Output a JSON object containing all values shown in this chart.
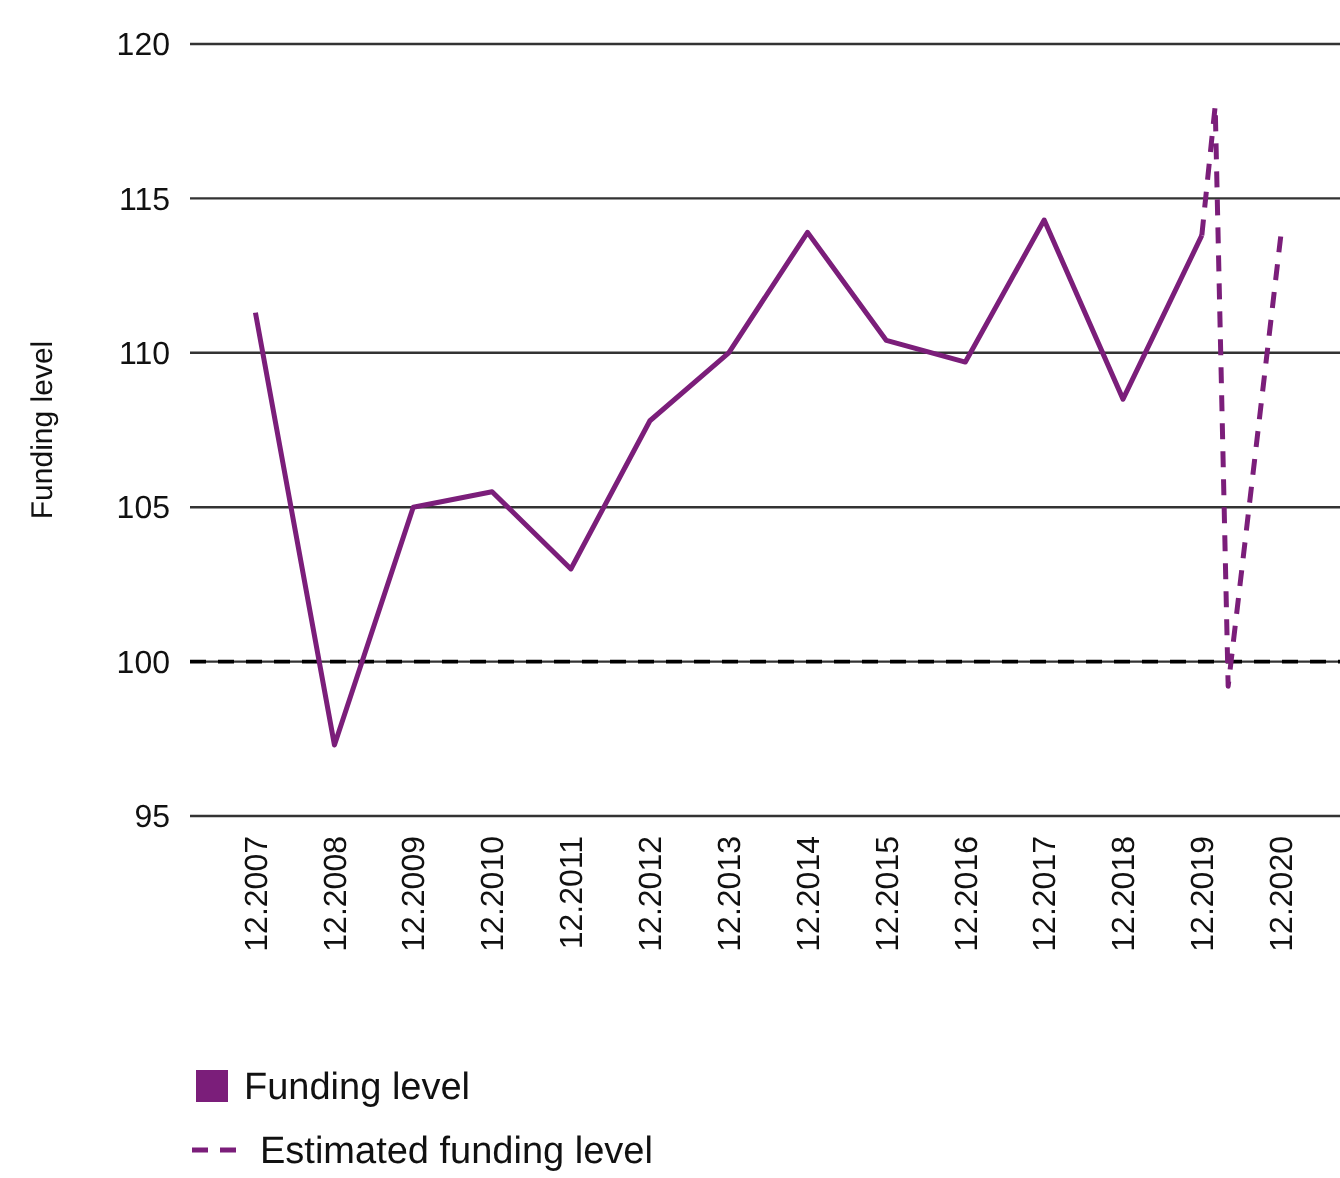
{
  "chart_data": {
    "type": "line",
    "ylabel": "Funding level",
    "xlim": [
      "2007-02",
      "2021-09"
    ],
    "xticks": [
      {
        "value": "2007-12",
        "label": "12.2007"
      },
      {
        "value": "2008-12",
        "label": "12.2008"
      },
      {
        "value": "2009-12",
        "label": "12.2009"
      },
      {
        "value": "2010-12",
        "label": "12.2010"
      },
      {
        "value": "2011-12",
        "label": "12.2011"
      },
      {
        "value": "2012-12",
        "label": "12.2012"
      },
      {
        "value": "2013-12",
        "label": "12.2013"
      },
      {
        "value": "2014-12",
        "label": "12.2014"
      },
      {
        "value": "2015-12",
        "label": "12.2015"
      },
      {
        "value": "2016-12",
        "label": "12.2016"
      },
      {
        "value": "2017-12",
        "label": "12.2017"
      },
      {
        "value": "2018-12",
        "label": "12.2018"
      },
      {
        "value": "2019-12",
        "label": "12.2019"
      },
      {
        "value": "2020-12",
        "label": "12.2020"
      }
    ],
    "ylim": [
      95,
      120
    ],
    "yticks": [
      95,
      100,
      105,
      110,
      115,
      120
    ],
    "grid": "y",
    "legend": "bottom left",
    "series": [
      {
        "name": "Funding level",
        "color": "#7b1e7a",
        "line_style": "solid",
        "x": [
          "2007-12",
          "2008-12",
          "2009-12",
          "2010-12",
          "2011-12",
          "2012-12",
          "2013-12",
          "2014-12",
          "2015-12",
          "2016-12",
          "2017-12",
          "2018-12",
          "2019-12"
        ],
        "values": [
          111.3,
          97.3,
          105.0,
          105.5,
          103.0,
          107.8,
          110.0,
          113.9,
          110.4,
          109.7,
          114.3,
          108.5,
          113.8
        ]
      },
      {
        "name": "Estimated funding level",
        "color": "#7b1e7a",
        "line_style": "dashed",
        "x": [
          "2019-12",
          "2020-02",
          "2020-04",
          "2020-12"
        ],
        "values": [
          113.8,
          118.0,
          99.2,
          113.8
        ]
      }
    ],
    "ref_lines": [
      {
        "axis": "y",
        "value": 100,
        "color": "#000000",
        "line_style": "dashed"
      }
    ]
  }
}
